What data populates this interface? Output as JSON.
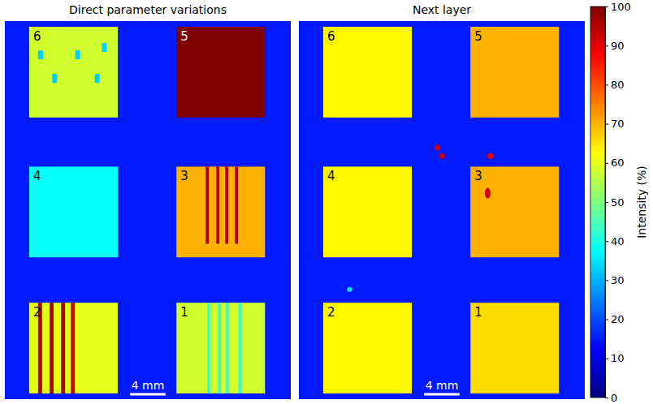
{
  "chart_data": {
    "type": "heatmap",
    "panels": [
      {
        "title": "Direct parameter variations",
        "background": 15,
        "squares": [
          {
            "label": "6",
            "value": 58,
            "spots": [
              33,
              33,
              33,
              33,
              33
            ]
          },
          {
            "label": "5",
            "value": 100
          },
          {
            "label": "4",
            "value": 38
          },
          {
            "label": "3",
            "value": 70,
            "stripes": [
              95,
              95,
              95,
              95
            ]
          },
          {
            "label": "2",
            "value": 60,
            "stripes": [
              95,
              95,
              95,
              92
            ]
          },
          {
            "label": "1",
            "value": 58,
            "stripes": [
              42,
              42,
              42,
              42
            ]
          }
        ],
        "scale_bar": "4 mm"
      },
      {
        "title": "Next layer",
        "background": 15,
        "squares": [
          {
            "label": "6",
            "value": 63
          },
          {
            "label": "5",
            "value": 70
          },
          {
            "label": "4",
            "value": 63
          },
          {
            "label": "3",
            "value": 70
          },
          {
            "label": "2",
            "value": 63
          },
          {
            "label": "1",
            "value": 66
          }
        ],
        "spots": [
          92,
          92,
          90,
          92,
          35
        ],
        "scale_bar": "4 mm"
      }
    ],
    "colorbar": {
      "title": "Intensity (%)",
      "range": [
        0,
        100
      ],
      "ticks": [
        0,
        10,
        20,
        30,
        40,
        50,
        60,
        70,
        80,
        90,
        100
      ]
    }
  }
}
